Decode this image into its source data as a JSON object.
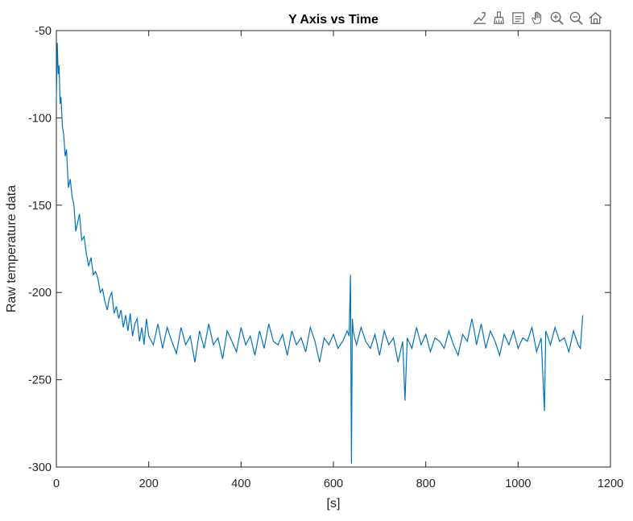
{
  "chart_data": {
    "type": "line",
    "title": "Y Axis vs Time",
    "xlabel": "[s]",
    "ylabel": "Raw temperature data",
    "xlim": [
      0,
      1200
    ],
    "ylim": [
      -300,
      -50
    ],
    "xticks": [
      0,
      200,
      400,
      600,
      800,
      1000,
      1200
    ],
    "yticks": [
      -50,
      -100,
      -150,
      -200,
      -250,
      -300
    ],
    "grid": false,
    "line_color": "#0072BD",
    "series": [
      {
        "x": [
          0,
          2,
          4,
          6,
          8,
          10,
          13,
          16,
          19,
          22,
          26,
          30,
          34,
          38,
          42,
          46,
          50,
          55,
          60,
          65,
          70,
          75,
          80,
          85,
          90,
          95,
          100,
          105,
          110,
          115,
          120,
          125,
          130,
          135,
          140,
          145,
          150,
          155,
          160,
          165,
          170,
          175,
          180,
          185,
          190,
          195,
          200,
          210,
          220,
          230,
          240,
          250,
          260,
          270,
          280,
          290,
          300,
          310,
          320,
          330,
          340,
          350,
          360,
          370,
          380,
          390,
          400,
          410,
          420,
          430,
          440,
          450,
          460,
          470,
          480,
          490,
          500,
          510,
          520,
          530,
          540,
          550,
          560,
          570,
          580,
          590,
          600,
          610,
          620,
          630,
          634,
          637,
          639,
          641,
          643,
          646,
          650,
          660,
          670,
          680,
          690,
          700,
          710,
          720,
          730,
          740,
          750,
          755,
          760,
          770,
          780,
          790,
          800,
          810,
          820,
          830,
          840,
          850,
          860,
          870,
          880,
          890,
          900,
          905,
          910,
          920,
          930,
          940,
          950,
          960,
          970,
          980,
          990,
          1000,
          1010,
          1020,
          1030,
          1040,
          1050,
          1057,
          1060,
          1070,
          1080,
          1090,
          1100,
          1110,
          1120,
          1130,
          1135,
          1140
        ],
        "y": [
          -90,
          -57,
          -75,
          -70,
          -92,
          -88,
          -105,
          -110,
          -122,
          -118,
          -140,
          -135,
          -145,
          -150,
          -165,
          -160,
          -155,
          -170,
          -168,
          -178,
          -185,
          -180,
          -190,
          -188,
          -192,
          -200,
          -198,
          -205,
          -210,
          -203,
          -200,
          -212,
          -208,
          -215,
          -210,
          -220,
          -213,
          -222,
          -212,
          -225,
          -218,
          -215,
          -228,
          -220,
          -230,
          -215,
          -225,
          -230,
          -218,
          -232,
          -220,
          -228,
          -235,
          -220,
          -230,
          -225,
          -240,
          -222,
          -232,
          -218,
          -230,
          -226,
          -238,
          -222,
          -228,
          -234,
          -220,
          -230,
          -225,
          -236,
          -222,
          -232,
          -218,
          -228,
          -230,
          -224,
          -236,
          -222,
          -230,
          -226,
          -234,
          -220,
          -228,
          -240,
          -226,
          -230,
          -224,
          -232,
          -228,
          -222,
          -225,
          -190,
          -298,
          -215,
          -222,
          -226,
          -230,
          -220,
          -228,
          -232,
          -224,
          -236,
          -222,
          -230,
          -226,
          -240,
          -228,
          -262,
          -226,
          -232,
          -220,
          -230,
          -224,
          -234,
          -226,
          -228,
          -232,
          -222,
          -230,
          -236,
          -224,
          -228,
          -215,
          -222,
          -230,
          -218,
          -232,
          -222,
          -228,
          -236,
          -224,
          -230,
          -222,
          -232,
          -226,
          -228,
          -220,
          -234,
          -226,
          -268,
          -222,
          -230,
          -220,
          -228,
          -226,
          -234,
          -222,
          -230,
          -232,
          -213
        ]
      }
    ]
  },
  "toolbar": {
    "icons": [
      "export-icon",
      "brush-icon",
      "datatip-icon",
      "pan-icon",
      "zoom-in-icon",
      "zoom-out-icon",
      "home-icon"
    ]
  }
}
